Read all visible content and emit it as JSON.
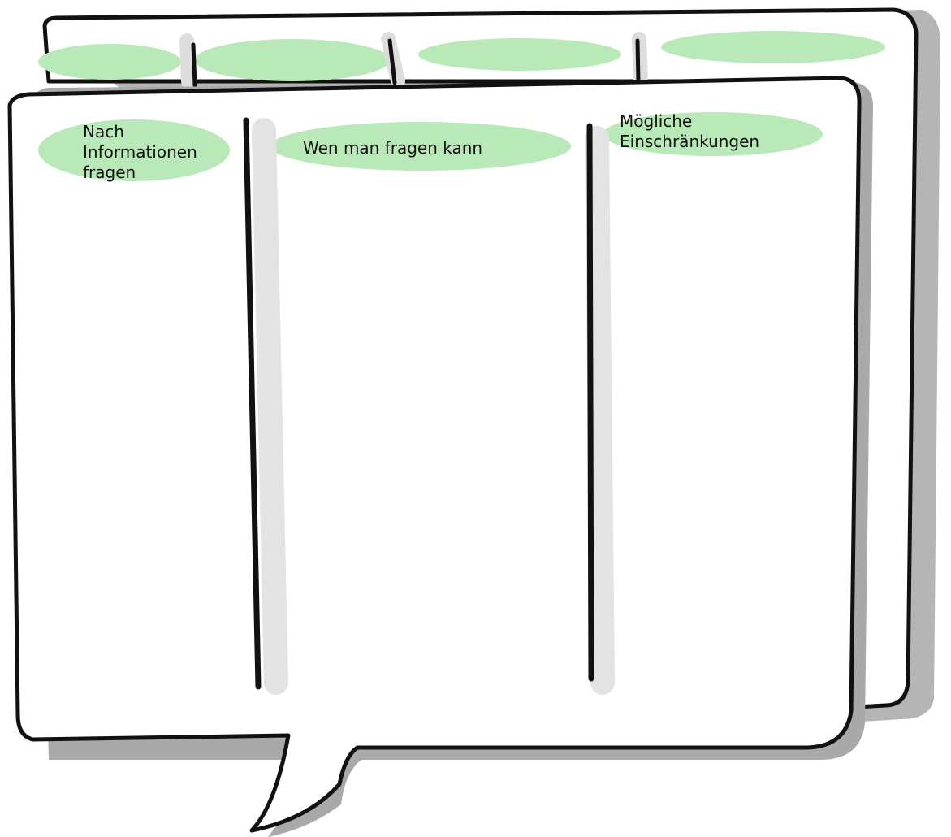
{
  "columns": [
    {
      "header": "Nach Informationen fragen"
    },
    {
      "header": "Wen man fragen kann"
    },
    {
      "header": "Mögliche Einschränkungen"
    }
  ]
}
